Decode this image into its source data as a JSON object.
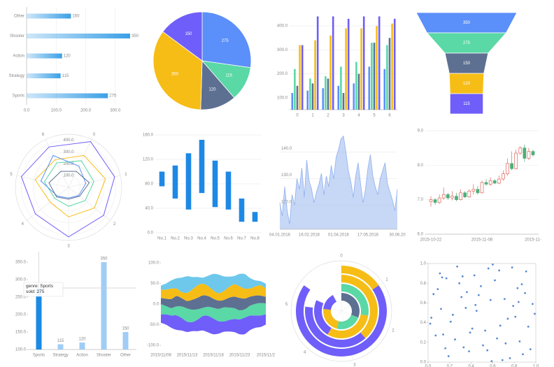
{
  "chart_data": [
    {
      "type": "bar",
      "orientation": "horizontal",
      "categories": [
        "Sports",
        "Strategy",
        "Action",
        "Shooter",
        "Other"
      ],
      "values": [
        275,
        115,
        120,
        350,
        150
      ],
      "color": "#3ba0e6",
      "xlim": [
        0,
        350
      ],
      "xticks": [
        {
          "value": 0,
          "label": "0.0"
        },
        {
          "value": 100,
          "label": "100.0"
        },
        {
          "value": 200,
          "label": "200.0"
        },
        {
          "value": 300,
          "label": "300.0"
        }
      ],
      "grid": true
    },
    {
      "type": "pie",
      "values": [
        275,
        115,
        120,
        350,
        150
      ],
      "colors": [
        "#5b8ff9",
        "#5ad8a6",
        "#5d7092",
        "#f6bd16",
        "#6f5ef9"
      ]
    },
    {
      "type": "bar",
      "categories": [
        "0",
        "1",
        "2",
        "3",
        "4",
        "5",
        "6"
      ],
      "series": [
        {
          "color": "#5b8ff9",
          "values": [
            120,
            130,
            140,
            150,
            160,
            230,
            220
          ]
        },
        {
          "color": "#5ad8a6",
          "values": [
            220,
            180,
            190,
            230,
            250,
            330,
            320
          ]
        },
        {
          "color": "#5d7092",
          "values": [
            150,
            160,
            180,
            120,
            200,
            330,
            350
          ]
        },
        {
          "color": "#f6bd16",
          "values": [
            320,
            340,
            360,
            390,
            390,
            400,
            410
          ]
        },
        {
          "color": "#6f5ef9",
          "values": [
            320,
            440,
            440,
            430,
            440,
            440,
            430
          ]
        }
      ],
      "ylim": [
        50,
        450
      ],
      "yticks": [
        {
          "value": 100,
          "label": "100.0"
        },
        {
          "value": 200,
          "label": "200.0"
        },
        {
          "value": 300,
          "label": "300.0"
        },
        {
          "value": 400,
          "label": "400.0"
        }
      ],
      "grid": true
    },
    {
      "type": "funnel",
      "values": [
        350,
        275,
        150,
        120,
        115
      ],
      "colors": [
        "#5b8ff9",
        "#5ad8a6",
        "#5d7092",
        "#f6bd16",
        "#6f5ef9"
      ]
    },
    {
      "type": "radar",
      "axes": [
        "0",
        "1",
        "2",
        "3",
        "4",
        "5",
        "6"
      ],
      "rlim": [
        0,
        450
      ],
      "rticks": [
        {
          "value": 100,
          "label": "100.0"
        },
        {
          "value": 200,
          "label": "200.0"
        },
        {
          "value": 300,
          "label": "300.0"
        },
        {
          "value": 400,
          "label": "400.0"
        }
      ],
      "series": [
        {
          "color": "#6f5ef9",
          "values": [
            430,
            400,
            380,
            420,
            360,
            410,
            380
          ]
        },
        {
          "color": "#f6bd16",
          "values": [
            300,
            320,
            280,
            250,
            200,
            290,
            260
          ]
        },
        {
          "color": "#5ad8a6",
          "values": [
            250,
            220,
            180,
            160,
            150,
            210,
            230
          ]
        },
        {
          "color": "#5b8ff9",
          "values": [
            200,
            150,
            110,
            90,
            120,
            240,
            300
          ]
        },
        {
          "color": "#5d7092",
          "values": [
            150,
            180,
            120,
            100,
            130,
            170,
            150
          ]
        }
      ]
    },
    {
      "type": "range-bar",
      "categories": [
        "No.1",
        "No.2",
        "No.3",
        "No.4",
        "No.5",
        "No.6",
        "No.7",
        "No.8"
      ],
      "low": [
        76,
        56,
        38,
        65,
        42,
        38,
        18,
        18
      ],
      "high": [
        100,
        110,
        130,
        152,
        118,
        100,
        56,
        34
      ],
      "color": "#1e88e5",
      "ylim": [
        0,
        160
      ],
      "yticks": [
        {
          "value": 0,
          "label": "0.0"
        },
        {
          "value": 40,
          "label": "40.0"
        },
        {
          "value": 80,
          "label": "80.0"
        },
        {
          "value": 120,
          "label": "120.0"
        },
        {
          "value": 160,
          "label": "160.0"
        }
      ],
      "grid": true
    },
    {
      "type": "area",
      "categories": [
        "04.01.2016",
        null,
        null,
        null,
        null,
        null,
        null,
        null,
        null,
        null,
        null,
        null,
        "16.02.2016",
        null,
        null,
        null,
        null,
        null,
        null,
        null,
        null,
        null,
        null,
        null,
        "01.04.2016",
        null,
        null,
        null,
        null,
        null,
        null,
        null,
        null,
        null,
        null,
        null,
        "17.05.2016",
        null,
        null,
        null,
        null,
        null,
        null,
        null,
        null,
        null,
        null,
        null,
        "30.06.20"
      ],
      "values": [
        121,
        116,
        127,
        118,
        113,
        124,
        120,
        130,
        126,
        134,
        123,
        137,
        129,
        126,
        121,
        125,
        128,
        132,
        124,
        131,
        127,
        135,
        130,
        138,
        141,
        145,
        146,
        140,
        133,
        129,
        123,
        131,
        136,
        128,
        121,
        126,
        134,
        139,
        131,
        127,
        124,
        130,
        133,
        136,
        128,
        125,
        122,
        118,
        126
      ],
      "color": "#8fb0ee",
      "ylim": [
        111,
        148
      ],
      "yticks": [
        {
          "value": 120,
          "label": "120.0"
        },
        {
          "value": 130,
          "label": "130.0"
        },
        {
          "value": 140,
          "label": "140.0"
        }
      ],
      "grid": true
    },
    {
      "type": "candlestick",
      "categories": [
        "2015-10-22",
        null,
        null,
        null,
        null,
        null,
        null,
        null,
        null,
        null,
        null,
        null,
        "2015-11-08",
        null,
        null,
        null,
        null,
        null,
        null,
        null,
        null,
        null,
        null,
        null,
        "2015-11-"
      ],
      "open": [
        6.95,
        7.0,
        6.92,
        7.05,
        7.15,
        7.05,
        7.1,
        7.0,
        7.2,
        7.08,
        7.25,
        7.3,
        7.2,
        7.5,
        7.45,
        7.55,
        7.48,
        7.6,
        7.75,
        8.05,
        7.9,
        8.35,
        8.5,
        8.2,
        8.4
      ],
      "close": [
        7.0,
        6.92,
        7.05,
        7.15,
        7.05,
        7.1,
        7.0,
        7.2,
        7.08,
        7.25,
        7.3,
        7.2,
        7.5,
        7.45,
        7.55,
        7.48,
        7.6,
        7.75,
        8.05,
        7.9,
        8.35,
        8.5,
        8.2,
        8.4,
        8.3
      ],
      "low": [
        6.8,
        6.85,
        6.88,
        7.0,
        7.0,
        6.98,
        6.95,
        6.98,
        7.05,
        7.05,
        7.15,
        7.15,
        7.18,
        7.4,
        7.4,
        7.45,
        7.45,
        7.55,
        7.7,
        7.85,
        7.88,
        8.3,
        8.1,
        8.15,
        8.25
      ],
      "high": [
        7.1,
        7.05,
        7.15,
        7.35,
        7.2,
        7.25,
        7.2,
        7.3,
        7.25,
        7.3,
        7.45,
        7.4,
        7.55,
        7.6,
        7.65,
        7.6,
        7.7,
        7.85,
        8.2,
        8.4,
        8.45,
        8.55,
        8.6,
        8.5,
        8.45
      ],
      "up_color": "#e0645a",
      "down_color": "#4caf7a",
      "ylim": [
        6,
        9
      ],
      "yticks": [
        {
          "value": 6,
          "label": "6.0"
        },
        {
          "value": 7,
          "label": "7.0"
        },
        {
          "value": 8,
          "label": "8.0"
        },
        {
          "value": 9,
          "label": "9.0"
        }
      ],
      "grid": true
    },
    {
      "type": "bar",
      "categories": [
        "Sports",
        "Strategy",
        "Action",
        "Shooter",
        "Other"
      ],
      "values": [
        275,
        115,
        120,
        350,
        150
      ],
      "color": "#a0cdf5",
      "highlight": 0,
      "highlight_color": "#1a8ae5",
      "tooltip": [
        "genre: Sports",
        "sold: 275"
      ],
      "ylim": [
        100,
        370
      ],
      "yticks": [
        {
          "value": 100,
          "label": "100.0"
        },
        {
          "value": 150,
          "label": "150.0"
        },
        {
          "value": 200,
          "label": "200.0"
        },
        {
          "value": 250,
          "label": "250.0"
        },
        {
          "value": 300,
          "label": "300.0"
        },
        {
          "value": 350,
          "label": "350.0"
        }
      ],
      "grid": false
    },
    {
      "type": "stream",
      "categories": [
        "2015/11/08",
        null,
        null,
        null,
        null,
        "2015/11/13",
        null,
        null,
        null,
        null,
        "2015/11/18",
        null,
        null,
        null,
        null,
        "2015/11/23",
        null,
        null,
        null,
        null,
        "2015/11/2"
      ],
      "series": [
        {
          "color": "#6f5ef9",
          "values": [
            20,
            25,
            30,
            35,
            30,
            25,
            22,
            28,
            35,
            40,
            38,
            30,
            25,
            28,
            32,
            36,
            40,
            35,
            30,
            28,
            25
          ]
        },
        {
          "color": "#5ad8a6",
          "values": [
            25,
            20,
            18,
            22,
            28,
            32,
            30,
            25,
            20,
            22,
            26,
            30,
            34,
            30,
            26,
            22,
            20,
            24,
            28,
            30,
            26
          ]
        },
        {
          "color": "#5d7092",
          "values": [
            15,
            18,
            22,
            25,
            20,
            18,
            24,
            28,
            30,
            26,
            22,
            20,
            18,
            24,
            28,
            30,
            26,
            22,
            20,
            18,
            16
          ]
        },
        {
          "color": "#f6bd16",
          "values": [
            20,
            22,
            25,
            18,
            15,
            20,
            25,
            30,
            28,
            24,
            20,
            18,
            22,
            26,
            30,
            28,
            24,
            20,
            22,
            25,
            20
          ]
        },
        {
          "color": "#6dc8ec",
          "values": [
            10,
            15,
            20,
            25,
            35,
            40,
            30,
            20,
            15,
            25,
            40,
            45,
            35,
            25,
            20,
            30,
            35,
            25,
            15,
            10,
            12
          ]
        }
      ],
      "ylim": [
        -110,
        110
      ],
      "yticks": [
        {
          "value": -100,
          "label": "-100.0"
        },
        {
          "value": -50,
          "label": "-50.0"
        },
        {
          "value": 0,
          "label": "0.0"
        },
        {
          "value": 50,
          "label": "50.0"
        },
        {
          "value": 100,
          "label": "100.0"
        }
      ],
      "grid": false
    },
    {
      "type": "polar-bar",
      "categories": [
        null,
        null,
        null,
        null
      ],
      "thetalim": [
        0,
        6.5
      ],
      "thetaticks": [
        0,
        1,
        2,
        3,
        4,
        5
      ],
      "series": [
        {
          "color": "#5d7092",
          "values": [
            2,
            0,
            0,
            0
          ]
        },
        {
          "color": "#5ad8a6",
          "values": [
            1.5,
            1.8,
            0,
            0
          ]
        },
        {
          "color": "#f6bd16",
          "values": [
            1.5,
            2,
            2.5,
            1
          ]
        },
        {
          "color": "#6f5ef9",
          "values": [
            1,
            1.5,
            2.5,
            4.5
          ]
        }
      ]
    },
    {
      "type": "scatter",
      "color": "#3c78c8",
      "xlim": [
        0,
        1
      ],
      "ylim": [
        0,
        1
      ],
      "xticks": [
        {
          "value": 0,
          "label": "0.0"
        },
        {
          "value": 0.2,
          "label": "0.2"
        },
        {
          "value": 0.4,
          "label": "0.4"
        },
        {
          "value": 0.6,
          "label": "0.6"
        },
        {
          "value": 0.8,
          "label": "0.8"
        },
        {
          "value": 1,
          "label": "1.0"
        }
      ],
      "yticks": [
        {
          "value": 0,
          "label": "0.0"
        },
        {
          "value": 0.2,
          "label": "0.2"
        },
        {
          "value": 0.4,
          "label": "0.4"
        },
        {
          "value": 0.6,
          "label": "0.6"
        },
        {
          "value": 0.8,
          "label": "0.8"
        },
        {
          "value": 1,
          "label": "1.0"
        }
      ],
      "x": [
        0.12,
        0.85,
        0.43,
        0.67,
        0.05,
        0.91,
        0.33,
        0.58,
        0.76,
        0.21,
        0.49,
        0.14,
        0.97,
        0.62,
        0.38,
        0.81,
        0.27,
        0.53,
        0.09,
        0.72,
        0.45,
        0.31,
        0.88,
        0.17,
        0.64,
        0.02,
        0.56,
        0.79,
        0.36,
        0.95,
        0.23,
        0.69,
        0.41,
        0.11,
        0.84,
        0.51,
        0.29,
        0.74,
        0.07,
        0.6,
        0.93,
        0.19,
        0.47,
        0.83,
        0.35,
        0.66,
        0.25,
        0.99,
        0.55,
        0.13,
        0.71,
        0.39,
        0.87,
        0.03,
        0.59,
        0.44,
        0.78,
        0.16,
        0.9,
        0.32
      ],
      "values": [
        0.54,
        0.21,
        0.88,
        0.37,
        0.69,
        0.92,
        0.15,
        0.63,
        0.04,
        0.41,
        0.77,
        0.28,
        0.59,
        0.83,
        0.11,
        0.46,
        0.97,
        0.32,
        0.74,
        0.19,
        0.52,
        0.66,
        0.08,
        0.85,
        0.24,
        0.39,
        0.95,
        0.57,
        0.71,
        0.13,
        0.48,
        0.02,
        0.34,
        0.9,
        0.61,
        0.17,
        0.8,
        0.44,
        0.27,
        0.99,
        0.36,
        0.06,
        0.68,
        0.75,
        0.55,
        0.93,
        0.23,
        0.49,
        0.12,
        0.86,
        0.64,
        0.3,
        0.79,
        0.45,
        0.01,
        0.58,
        0.96,
        0.14,
        0.7,
        0.87
      ],
      "grid": false
    }
  ]
}
